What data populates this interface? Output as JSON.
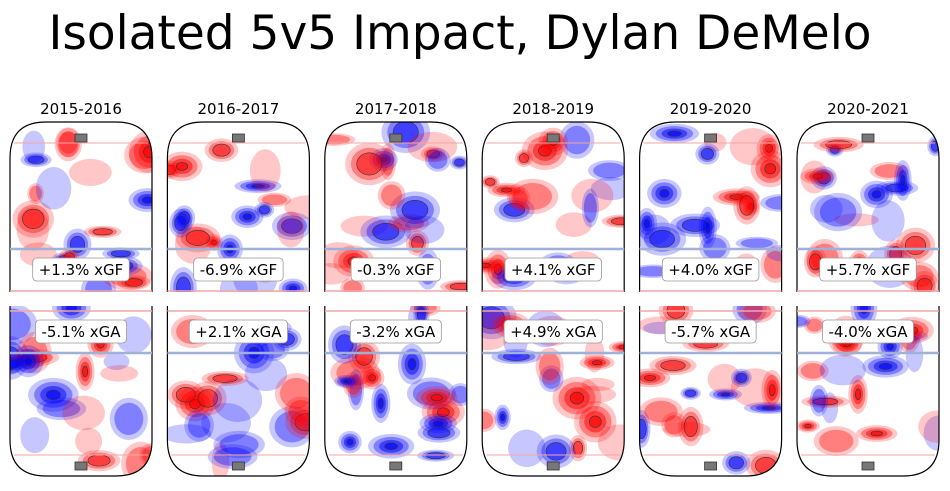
{
  "chart_data": {
    "type": "heatmap",
    "title": "Isolated 5v5 Impact, Dylan DeMelo",
    "panels": [
      {
        "season": "2015-2016",
        "xgf": "+1.3% xGF",
        "xga": "-5.1% xGA"
      },
      {
        "season": "2016-2017",
        "xgf": "-6.9% xGF",
        "xga": "+2.1% xGA"
      },
      {
        "season": "2017-2018",
        "xgf": "-0.3% xGF",
        "xga": "-3.2% xGA"
      },
      {
        "season": "2018-2019",
        "xgf": "+4.1% xGF",
        "xga": "+4.9% xGA"
      },
      {
        "season": "2019-2020",
        "xgf": "+4.0% xGF",
        "xga": "-5.7% xGA"
      },
      {
        "season": "2020-2021",
        "xgf": "+5.7% xGF",
        "xga": "-4.0% xGA"
      }
    ],
    "colormap": {
      "positive": "#ff0000",
      "negative": "#0000ff",
      "neutral": "#ffffff"
    }
  }
}
